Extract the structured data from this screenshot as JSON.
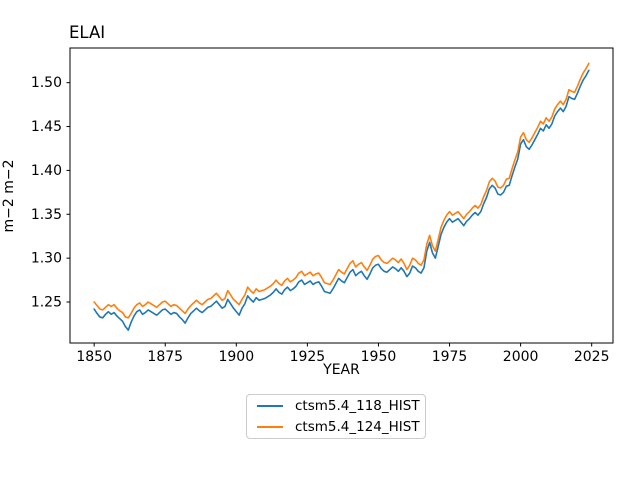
{
  "figure": {
    "title": "ELAI",
    "xlabel": "YEAR",
    "ylabel": "m−2 m−2"
  },
  "legend": {
    "items": [
      {
        "label": "ctsm5.4_118_HIST",
        "color": "#1f77b4"
      },
      {
        "label": "ctsm5.4_124_HIST",
        "color": "#ff7f0e"
      }
    ]
  },
  "chart_data": {
    "type": "line",
    "title": "ELAI",
    "xlabel": "YEAR",
    "ylabel": "m−2 m−2",
    "grid": false,
    "legend_position": "below-center",
    "x_ticks": [
      1850,
      1875,
      1900,
      1925,
      1950,
      1975,
      2000,
      2025
    ],
    "y_ticks": [
      1.25,
      1.3,
      1.35,
      1.4,
      1.45,
      1.5
    ],
    "xlim": [
      1841.5,
      2032.5
    ],
    "ylim": [
      1.2033,
      1.5395
    ],
    "x_start_year": 1850,
    "x_end_year": 2024,
    "x": [
      1850,
      1851,
      1852,
      1853,
      1854,
      1855,
      1856,
      1857,
      1858,
      1859,
      1860,
      1861,
      1862,
      1863,
      1864,
      1865,
      1866,
      1867,
      1868,
      1869,
      1870,
      1871,
      1872,
      1873,
      1874,
      1875,
      1876,
      1877,
      1878,
      1879,
      1880,
      1881,
      1882,
      1883,
      1884,
      1885,
      1886,
      1887,
      1888,
      1889,
      1890,
      1891,
      1892,
      1893,
      1894,
      1895,
      1896,
      1897,
      1898,
      1899,
      1900,
      1901,
      1902,
      1903,
      1904,
      1905,
      1906,
      1907,
      1908,
      1909,
      1910,
      1911,
      1912,
      1913,
      1914,
      1915,
      1916,
      1917,
      1918,
      1919,
      1920,
      1921,
      1922,
      1923,
      1924,
      1925,
      1926,
      1927,
      1928,
      1929,
      1930,
      1931,
      1932,
      1933,
      1934,
      1935,
      1936,
      1937,
      1938,
      1939,
      1940,
      1941,
      1942,
      1943,
      1944,
      1945,
      1946,
      1947,
      1948,
      1949,
      1950,
      1951,
      1952,
      1953,
      1954,
      1955,
      1956,
      1957,
      1958,
      1959,
      1960,
      1961,
      1962,
      1963,
      1964,
      1965,
      1966,
      1967,
      1968,
      1969,
      1970,
      1971,
      1972,
      1973,
      1974,
      1975,
      1976,
      1977,
      1978,
      1979,
      1980,
      1981,
      1982,
      1983,
      1984,
      1985,
      1986,
      1987,
      1988,
      1989,
      1990,
      1991,
      1992,
      1993,
      1994,
      1995,
      1996,
      1997,
      1998,
      1999,
      2000,
      2001,
      2002,
      2003,
      2004,
      2005,
      2006,
      2007,
      2008,
      2009,
      2010,
      2011,
      2012,
      2013,
      2014,
      2015,
      2016,
      2017,
      2018,
      2019,
      2020,
      2021,
      2022,
      2023,
      2024
    ],
    "series": [
      {
        "name": "ctsm5.4_118_HIST",
        "color": "#1f77b4",
        "values": [
          1.242,
          1.237,
          1.233,
          1.232,
          1.236,
          1.239,
          1.236,
          1.238,
          1.234,
          1.231,
          1.228,
          1.222,
          1.218,
          1.227,
          1.234,
          1.239,
          1.241,
          1.236,
          1.238,
          1.241,
          1.239,
          1.237,
          1.235,
          1.238,
          1.241,
          1.242,
          1.239,
          1.236,
          1.238,
          1.237,
          1.233,
          1.23,
          1.226,
          1.232,
          1.237,
          1.24,
          1.243,
          1.24,
          1.238,
          1.241,
          1.244,
          1.245,
          1.248,
          1.251,
          1.247,
          1.243,
          1.245,
          1.253,
          1.248,
          1.243,
          1.239,
          1.235,
          1.243,
          1.248,
          1.257,
          1.253,
          1.25,
          1.255,
          1.252,
          1.253,
          1.254,
          1.256,
          1.258,
          1.261,
          1.265,
          1.261,
          1.259,
          1.264,
          1.267,
          1.263,
          1.265,
          1.268,
          1.273,
          1.275,
          1.27,
          1.272,
          1.274,
          1.27,
          1.272,
          1.273,
          1.268,
          1.262,
          1.261,
          1.26,
          1.265,
          1.271,
          1.277,
          1.274,
          1.272,
          1.278,
          1.284,
          1.287,
          1.28,
          1.283,
          1.285,
          1.28,
          1.276,
          1.282,
          1.289,
          1.292,
          1.293,
          1.288,
          1.285,
          1.284,
          1.287,
          1.29,
          1.288,
          1.285,
          1.289,
          1.285,
          1.279,
          1.283,
          1.291,
          1.289,
          1.285,
          1.283,
          1.289,
          1.308,
          1.318,
          1.306,
          1.3,
          1.313,
          1.327,
          1.335,
          1.341,
          1.345,
          1.341,
          1.343,
          1.345,
          1.341,
          1.337,
          1.342,
          1.345,
          1.349,
          1.352,
          1.349,
          1.353,
          1.362,
          1.369,
          1.379,
          1.383,
          1.38,
          1.373,
          1.372,
          1.375,
          1.382,
          1.383,
          1.394,
          1.404,
          1.413,
          1.43,
          1.435,
          1.427,
          1.424,
          1.429,
          1.435,
          1.441,
          1.448,
          1.445,
          1.452,
          1.448,
          1.453,
          1.462,
          1.467,
          1.471,
          1.467,
          1.473,
          1.484,
          1.482,
          1.481,
          1.488,
          1.496,
          1.503,
          1.508,
          1.514
        ]
      },
      {
        "name": "ctsm5.4_124_HIST",
        "color": "#ff7f0e",
        "values": [
          1.25,
          1.246,
          1.242,
          1.241,
          1.244,
          1.247,
          1.245,
          1.247,
          1.243,
          1.24,
          1.238,
          1.233,
          1.232,
          1.237,
          1.243,
          1.247,
          1.249,
          1.245,
          1.247,
          1.25,
          1.248,
          1.246,
          1.244,
          1.247,
          1.25,
          1.251,
          1.248,
          1.245,
          1.247,
          1.246,
          1.243,
          1.24,
          1.237,
          1.242,
          1.246,
          1.249,
          1.252,
          1.249,
          1.247,
          1.25,
          1.253,
          1.254,
          1.257,
          1.26,
          1.256,
          1.252,
          1.254,
          1.263,
          1.258,
          1.253,
          1.25,
          1.247,
          1.253,
          1.258,
          1.267,
          1.263,
          1.26,
          1.265,
          1.262,
          1.263,
          1.264,
          1.266,
          1.268,
          1.271,
          1.275,
          1.271,
          1.269,
          1.274,
          1.277,
          1.273,
          1.275,
          1.278,
          1.283,
          1.285,
          1.28,
          1.282,
          1.284,
          1.28,
          1.282,
          1.283,
          1.278,
          1.272,
          1.271,
          1.27,
          1.275,
          1.281,
          1.287,
          1.284,
          1.282,
          1.288,
          1.294,
          1.297,
          1.29,
          1.293,
          1.295,
          1.29,
          1.286,
          1.292,
          1.299,
          1.302,
          1.303,
          1.298,
          1.295,
          1.294,
          1.297,
          1.3,
          1.298,
          1.295,
          1.299,
          1.294,
          1.287,
          1.292,
          1.3,
          1.298,
          1.294,
          1.292,
          1.298,
          1.316,
          1.326,
          1.314,
          1.308,
          1.321,
          1.335,
          1.343,
          1.349,
          1.353,
          1.349,
          1.351,
          1.353,
          1.349,
          1.345,
          1.35,
          1.353,
          1.357,
          1.36,
          1.357,
          1.361,
          1.37,
          1.377,
          1.387,
          1.391,
          1.388,
          1.381,
          1.38,
          1.383,
          1.39,
          1.391,
          1.402,
          1.412,
          1.421,
          1.438,
          1.443,
          1.435,
          1.432,
          1.437,
          1.443,
          1.449,
          1.456,
          1.453,
          1.46,
          1.456,
          1.461,
          1.47,
          1.475,
          1.479,
          1.475,
          1.481,
          1.492,
          1.49,
          1.489,
          1.496,
          1.504,
          1.511,
          1.516,
          1.522
        ]
      }
    ]
  }
}
